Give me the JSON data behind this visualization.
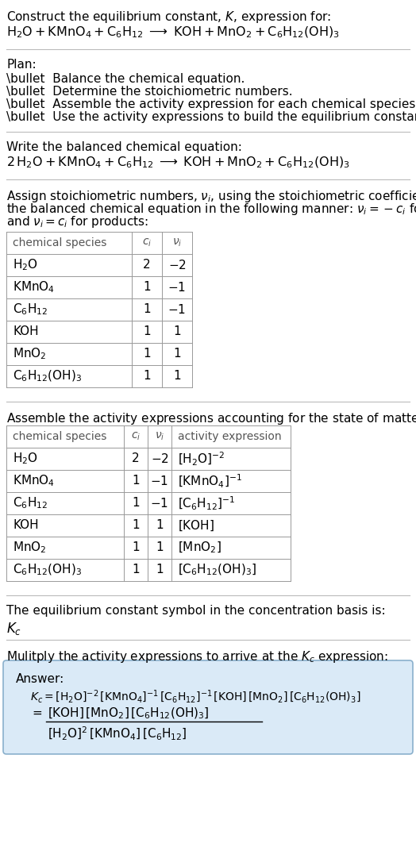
{
  "bg_color": "#ffffff",
  "text_color": "#000000",
  "line_color": "#aaaaaa",
  "answer_box_bg": "#daeaf7",
  "answer_box_edge": "#8ab0cc",
  "sections": {
    "title_line1": "Construct the equilibrium constant, $K$, expression for:",
    "title_line2": "$\\mathrm{H_2O + KMnO_4 + C_6H_{12} \\;\\longrightarrow\\; KOH + MnO_2 + C_6H_{12}(OH)_3}$",
    "plan_header": "Plan:",
    "plan_bullets": [
      "\\bullet  Balance the chemical equation.",
      "\\bullet  Determine the stoichiometric numbers.",
      "\\bullet  Assemble the activity expression for each chemical species.",
      "\\bullet  Use the activity expressions to build the equilibrium constant expression."
    ],
    "balanced_header": "Write the balanced chemical equation:",
    "balanced_eq": "$\\mathrm{2\\, H_2O + KMnO_4 + C_6H_{12} \\;\\longrightarrow\\; KOH + MnO_2 + C_6H_{12}(OH)_3}$",
    "stoich_header_lines": [
      "Assign stoichiometric numbers, $\\nu_i$, using the stoichiometric coefficients, $c_i$, from",
      "the balanced chemical equation in the following manner: $\\nu_i = -c_i$ for reactants",
      "and $\\nu_i = c_i$ for products:"
    ],
    "table1_headers": [
      "chemical species",
      "$c_i$",
      "$\\nu_i$"
    ],
    "table1_rows": [
      [
        "$\\mathrm{H_2O}$",
        "2",
        "$-2$"
      ],
      [
        "$\\mathrm{KMnO_4}$",
        "1",
        "$-1$"
      ],
      [
        "$\\mathrm{C_6H_{12}}$",
        "1",
        "$-1$"
      ],
      [
        "KOH",
        "1",
        "1"
      ],
      [
        "$\\mathrm{MnO_2}$",
        "1",
        "1"
      ],
      [
        "$\\mathrm{C_6H_{12}(OH)_3}$",
        "1",
        "1"
      ]
    ],
    "activity_header": "Assemble the activity expressions accounting for the state of matter and $\\nu_i$:",
    "table2_headers": [
      "chemical species",
      "$c_i$",
      "$\\nu_i$",
      "activity expression"
    ],
    "table2_rows": [
      [
        "$\\mathrm{H_2O}$",
        "2",
        "$-2$",
        "$[\\mathrm{H_2O}]^{-2}$"
      ],
      [
        "$\\mathrm{KMnO_4}$",
        "1",
        "$-1$",
        "$[\\mathrm{KMnO_4}]^{-1}$"
      ],
      [
        "$\\mathrm{C_6H_{12}}$",
        "1",
        "$-1$",
        "$[\\mathrm{C_6H_{12}}]^{-1}$"
      ],
      [
        "KOH",
        "1",
        "1",
        "$[\\mathrm{KOH}]$"
      ],
      [
        "$\\mathrm{MnO_2}$",
        "1",
        "1",
        "$[\\mathrm{MnO_2}]$"
      ],
      [
        "$\\mathrm{C_6H_{12}(OH)_3}$",
        "1",
        "1",
        "$[\\mathrm{C_6H_{12}(OH)_3}]$"
      ]
    ],
    "kc_header": "The equilibrium constant symbol in the concentration basis is:",
    "kc_symbol": "$K_c$",
    "multiply_header": "Mulitply the activity expressions to arrive at the $K_c$ expression:",
    "answer_label": "Answer:",
    "ans_kc_line": "$K_c = [\\mathrm{H_2O}]^{-2}\\,[\\mathrm{KMnO_4}]^{-1}\\,[\\mathrm{C_6H_{12}}]^{-1}\\,[\\mathrm{KOH}]\\,[\\mathrm{MnO_2}]\\,[\\mathrm{C_6H_{12}(OH)_3}]$",
    "ans_eq_sign": "$= $",
    "ans_numerator": "$[\\mathrm{KOH}]\\,[\\mathrm{MnO_2}]\\,[\\mathrm{C_6H_{12}(OH)_3}]$",
    "ans_denominator": "$[\\mathrm{H_2O}]^{2}\\,[\\mathrm{KMnO_4}]\\,[\\mathrm{C_6H_{12}}]$"
  }
}
